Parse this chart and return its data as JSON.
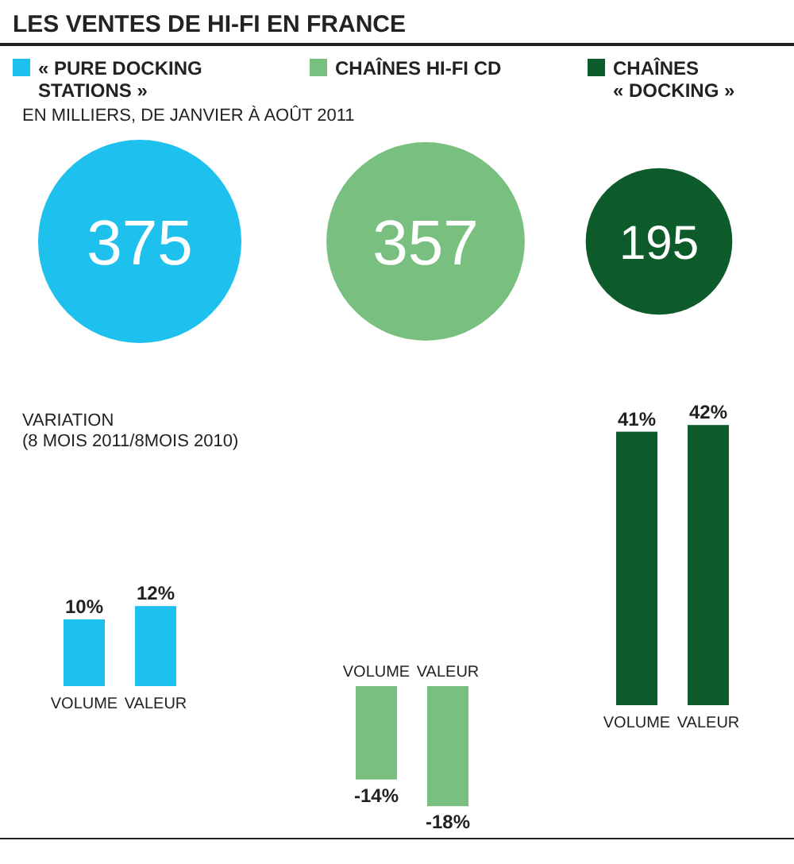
{
  "chart_data": [
    {
      "type": "other",
      "title": "LES VENTES DE HI-FI EN FRANCE",
      "subtitle": "EN MILLIERS, DE JANVIER À AOÛT 2011",
      "data_labels": true,
      "categories": [
        "« PURE DOCKING STATIONS »",
        "CHAÎNES HI-FI CD",
        "CHAÎNES « DOCKING »"
      ],
      "values": [
        375,
        357,
        195
      ],
      "colors": [
        "#1ec0ee",
        "#79bf80",
        "#0d5a2b"
      ],
      "annotations": [
        "VARIATION (8 MOIS 2011/8MOIS 2010)"
      ]
    },
    {
      "type": "bar",
      "categories": [
        "VOLUME",
        "VALEUR"
      ],
      "values": [
        10,
        12
      ],
      "value_labels": [
        "10%",
        "12%"
      ],
      "colors": [
        "#1ec0ee",
        "#1ec0ee"
      ]
    },
    {
      "type": "bar",
      "categories": [
        "VOLUME",
        "VALEUR"
      ],
      "values": [
        -14,
        -18
      ],
      "value_labels": [
        "-14%",
        "-18%"
      ],
      "colors": [
        "#79bf80",
        "#79bf80"
      ]
    },
    {
      "type": "bar",
      "categories": [
        "VOLUME",
        "VALEUR"
      ],
      "values": [
        41,
        42
      ],
      "value_labels": [
        "41%",
        "42%"
      ],
      "colors": [
        "#0d5a2b",
        "#0d5a2b"
      ]
    }
  ]
}
